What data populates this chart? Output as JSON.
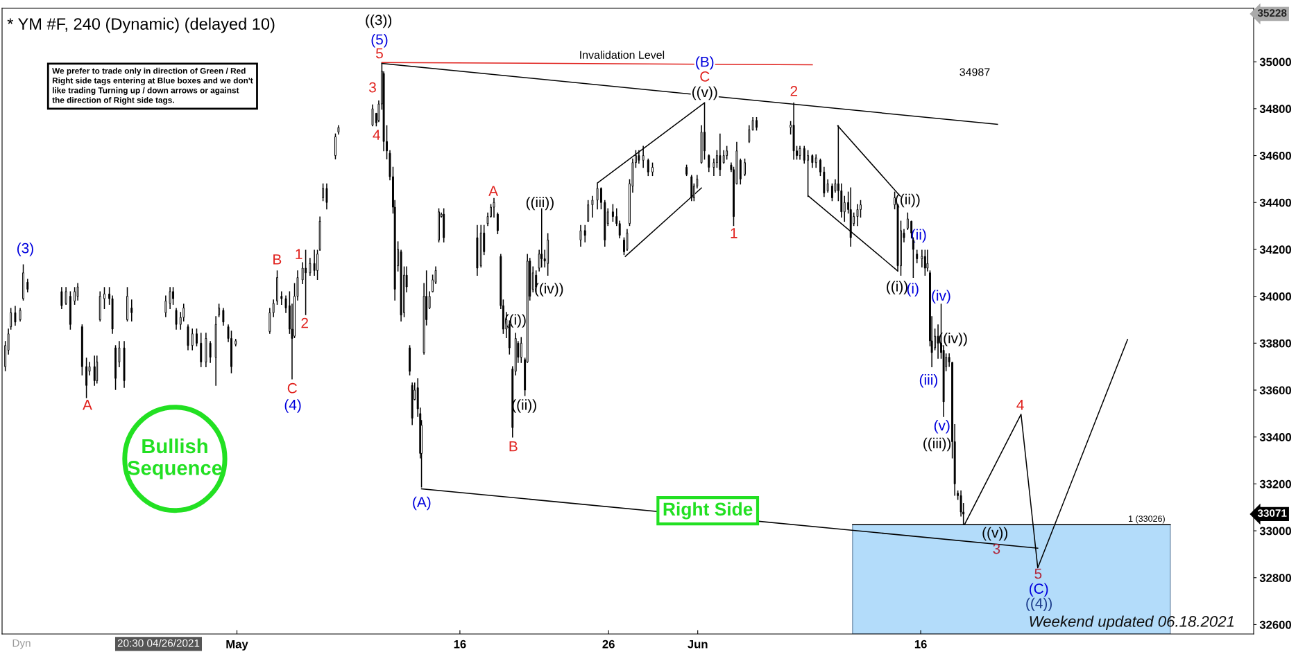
{
  "chart_data": {
    "type": "candlestick",
    "title": "* YM #F, 240 (Dynamic) (delayed 10)",
    "x": [
      "2021-04-15T10:00",
      "2021-04-15T15:00",
      "2021-04-15T19:00",
      "2021-04-16T02:00",
      "2021-04-16T10:00",
      "2021-04-16T15:00",
      "2021-04-16T22:00",
      "2021-04-19T05:00",
      "2021-04-19T12:00",
      "2021-04-19T19:00",
      "2021-04-20T02:00",
      "2021-04-20T07:00",
      "2021-04-20T14:00",
      "2021-04-20T21:00",
      "2021-04-21T02:00",
      "2021-04-21T10:00",
      "2021-04-21T14:00",
      "2021-04-21T19:00",
      "2021-04-22T02:00",
      "2021-04-22T10:00",
      "2021-04-22T15:00",
      "2021-04-22T20:00",
      "2021-04-23T02:00",
      "2021-04-23T10:00",
      "2021-04-23T15:00",
      "2021-04-23T22:00",
      "2021-04-26T05:00",
      "2021-04-26T12:00",
      "2021-04-26T17:00",
      "2021-04-26T22:00",
      "2021-04-27T05:00",
      "2021-04-27T10:00",
      "2021-04-27T17:00",
      "2021-04-28T00:00",
      "2021-04-28T07:00",
      "2021-04-28T14:00",
      "2021-04-28T22:00",
      "2021-04-29T05:00",
      "2021-04-29T14:00",
      "2021-04-29T19:00",
      "2021-04-30T02:00",
      "2021-04-30T10:00",
      "2021-04-30T15:00",
      "2021-04-30T22:00",
      "2021-05-03T05:00",
      "2021-05-03T11:00",
      "2021-05-03T17:00",
      "2021-05-04T00:00",
      "2021-05-04T07:00",
      "2021-05-04T13:00",
      "2021-05-04T17:00",
      "2021-05-04T21:00",
      "2021-05-05T02:00",
      "2021-05-05T10:00",
      "2021-05-05T15:00",
      "2021-05-05T22:00",
      "2021-05-06T05:00",
      "2021-05-06T10:00",
      "2021-05-06T14:00",
      "2021-05-06T19:00",
      "2021-05-07T01:00",
      "2021-05-07T15:00",
      "2021-05-07T20:00",
      "2021-05-10T03:00",
      "2021-05-10T09:00",
      "2021-05-10T13:00",
      "2021-05-10T18:00",
      "2021-05-10T21:00",
      "2021-05-11T02:00",
      "2021-05-11T07:00",
      "2021-05-11T12:00",
      "2021-05-11T15:00",
      "2021-05-11T20:00",
      "2021-05-12T01:00",
      "2021-05-12T06:00",
      "2021-05-12T10:00",
      "2021-05-12T15:00",
      "2021-05-12T19:00",
      "2021-05-12T23:00",
      "2021-05-13T04:00",
      "2021-05-13T08:00",
      "2021-05-13T10:00",
      "2021-05-13T14:00",
      "2021-05-13T18:00",
      "2021-05-13T23:00",
      "2021-05-14T04:00",
      "2021-05-14T09:00",
      "2021-05-14T14:00",
      "2021-05-14T18:00",
      "2021-05-14T22:00",
      "2021-05-17T04:00",
      "2021-05-17T10:00",
      "2021-05-17T15:00",
      "2021-05-17T21:00",
      "2021-05-18T02:00",
      "2021-05-18T07:00",
      "2021-05-18T13:00",
      "2021-05-18T18:00",
      "2021-05-18T22:00",
      "2021-05-19T03:00",
      "2021-05-19T08:00",
      "2021-05-19T13:00",
      "2021-05-19T18:00",
      "2021-05-19T22:00",
      "2021-05-20T03:00",
      "2021-05-20T09:00",
      "2021-05-20T13:00",
      "2021-05-20T17:00",
      "2021-05-20T22:00",
      "2021-05-21T03:00",
      "2021-05-21T08:00",
      "2021-05-21T12:00",
      "2021-05-21T17:00",
      "2021-05-21T22:00",
      "2021-05-24T03:00",
      "2021-05-24T10:00",
      "2021-05-24T15:00",
      "2021-05-24T22:00",
      "2021-05-25T06:00",
      "2021-05-25T12:00",
      "2021-05-25T18:00",
      "2021-05-25T23:00",
      "2021-05-26T07:00",
      "2021-05-26T13:00",
      "2021-05-26T18:00",
      "2021-05-27T01:00",
      "2021-05-27T06:00",
      "2021-05-27T10:00",
      "2021-05-27T15:00",
      "2021-05-27T20:00",
      "2021-05-28T01:00",
      "2021-05-28T08:00",
      "2021-05-28T16:00",
      "2021-05-28T23:00",
      "2021-05-31T06:00",
      "2021-05-31T14:00",
      "2021-05-31T18:00",
      "2021-05-31T23:00",
      "2021-06-01T06:00",
      "2021-06-01T11:00",
      "2021-06-01T18:00",
      "2021-06-02T02:00",
      "2021-06-02T07:00",
      "2021-06-02T12:00",
      "2021-06-02T18:00",
      "2021-06-02T23:00",
      "2021-06-03T06:00",
      "2021-06-03T10:00",
      "2021-06-03T15:00",
      "2021-06-03T21:00",
      "2021-06-04T04:00",
      "2021-06-04T11:00",
      "2021-06-04T17:00",
      "2021-06-04T23:00",
      "2021-06-07T06:00",
      "2021-06-07T11:00",
      "2021-06-07T16:00",
      "2021-06-07T21:00",
      "2021-06-08T04:00",
      "2021-06-08T10:00",
      "2021-06-08T17:00",
      "2021-06-08T23:00",
      "2021-06-09T06:00",
      "2021-06-09T12:00",
      "2021-06-09T18:00",
      "2021-06-10T01:00",
      "2021-06-10T06:00",
      "2021-06-10T11:00",
      "2021-06-10T16:00",
      "2021-06-10T21:00",
      "2021-06-11T03:00",
      "2021-06-11T07:00",
      "2021-06-11T12:00",
      "2021-06-11T18:00",
      "2021-06-11T23:00",
      "2021-06-14T06:00",
      "2021-06-14T11:00",
      "2021-06-14T16:00",
      "2021-06-14T21:00",
      "2021-06-15T03:00",
      "2021-06-15T09:00",
      "2021-06-15T12:00",
      "2021-06-15T18:00",
      "2021-06-16T02:00",
      "2021-06-16T07:00",
      "2021-06-16T11:00",
      "2021-06-16T15:00",
      "2021-06-16T18:00",
      "2021-06-16T23:00",
      "2021-06-17T04:00",
      "2021-06-17T09:00",
      "2021-06-17T13:00",
      "2021-06-17T17:00",
      "2021-06-17T22:00",
      "2021-06-18T03:00",
      "2021-06-18T07:00",
      "2021-06-18T12:00",
      "2021-06-18T17:00",
      "2021-06-18T21:00"
    ],
    "ohlc": [
      [
        33700,
        33807,
        33683,
        33790
      ],
      [
        33770,
        33860,
        33754,
        33840
      ],
      [
        33870,
        33948,
        33860,
        33930
      ],
      [
        33930,
        33957,
        33877,
        33890
      ],
      [
        33900,
        33948,
        33895,
        33940
      ],
      [
        33990,
        34134,
        33984,
        34100
      ],
      [
        34060,
        34072,
        34019,
        34030
      ],
      [
        34020,
        34037,
        33948,
        33960
      ],
      [
        33970,
        34037,
        33966,
        34020
      ],
      [
        34000,
        34019,
        33860,
        33880
      ],
      [
        33980,
        34037,
        33966,
        34020
      ],
      [
        34000,
        34054,
        33984,
        34040
      ],
      [
        33870,
        33878,
        33665,
        33700
      ],
      [
        33700,
        33736,
        33568,
        33620
      ],
      [
        33680,
        33718,
        33665,
        33700
      ],
      [
        33700,
        33745,
        33621,
        33640
      ],
      [
        33640,
        33745,
        33630,
        33720
      ],
      [
        33900,
        34019,
        33895,
        34000
      ],
      [
        33990,
        34037,
        33948,
        34010
      ],
      [
        34010,
        34037,
        33966,
        33990
      ],
      [
        33990,
        34001,
        33842,
        33860
      ],
      [
        33780,
        33789,
        33603,
        33650
      ],
      [
        33720,
        33807,
        33700,
        33780
      ],
      [
        33780,
        33807,
        33612,
        33640
      ],
      [
        33900,
        34037,
        33895,
        34000
      ],
      [
        33950,
        33984,
        33895,
        33930
      ],
      [
        33930,
        34001,
        33913,
        33980
      ],
      [
        33970,
        34037,
        33948,
        34020
      ],
      [
        34020,
        34037,
        33966,
        33990
      ],
      [
        33940,
        33948,
        33860,
        33880
      ],
      [
        33880,
        33931,
        33860,
        33910
      ],
      [
        33910,
        33966,
        33895,
        33950
      ],
      [
        33870,
        33878,
        33772,
        33790
      ],
      [
        33790,
        33860,
        33772,
        33840
      ],
      [
        33840,
        33860,
        33789,
        33800
      ],
      [
        33800,
        33842,
        33700,
        33720
      ],
      [
        33720,
        33842,
        33700,
        33820
      ],
      [
        33800,
        33807,
        33718,
        33740
      ],
      [
        33740,
        33913,
        33621,
        33880
      ],
      [
        33920,
        33966,
        33913,
        33950
      ],
      [
        33940,
        33948,
        33877,
        33890
      ],
      [
        33870,
        33878,
        33807,
        33820
      ],
      [
        33820,
        33851,
        33674,
        33700
      ],
      [
        33795,
        33816,
        33789,
        33810
      ],
      [
        33850,
        33948,
        33842,
        33930
      ],
      [
        33930,
        33984,
        33913,
        33970
      ],
      [
        33980,
        34108,
        33966,
        34080
      ],
      [
        34000,
        34019,
        33966,
        33990
      ],
      [
        33990,
        34001,
        33931,
        33950
      ],
      [
        33960,
        34019,
        33842,
        33860
      ],
      [
        33860,
        33966,
        33648,
        33820
      ],
      [
        33830,
        34054,
        33824,
        34000
      ],
      [
        34000,
        34108,
        33984,
        34080
      ],
      [
        34070,
        34143,
        34054,
        34120
      ],
      [
        34120,
        34196,
        33922,
        34100
      ],
      [
        34100,
        34161,
        34090,
        34140
      ],
      [
        34140,
        34196,
        34090,
        34110
      ],
      [
        34110,
        34196,
        34072,
        34180
      ],
      [
        34200,
        34338,
        34196,
        34320
      ],
      [
        34420,
        34479,
        34408,
        34460
      ],
      [
        34460,
        34479,
        34373,
        34400
      ],
      [
        34600,
        34692,
        34586,
        34680
      ],
      [
        34700,
        34727,
        34692,
        34720
      ],
      [
        34730,
        34816,
        34727,
        34800
      ],
      [
        34780,
        34780,
        34727,
        34740
      ],
      [
        34750,
        34833,
        34745,
        34820
      ],
      [
        34820,
        34993,
        34798,
        34960
      ],
      [
        34950,
        34957,
        34621,
        34660
      ],
      [
        34660,
        34727,
        34586,
        34620
      ],
      [
        34610,
        34621,
        34497,
        34510
      ],
      [
        34510,
        34550,
        34355,
        34380
      ],
      [
        34380,
        34408,
        33984,
        34030
      ],
      [
        34130,
        34232,
        34108,
        34200
      ],
      [
        34190,
        34196,
        33895,
        33920
      ],
      [
        33930,
        34125,
        33913,
        34090
      ],
      [
        34090,
        34125,
        34019,
        34040
      ],
      [
        33780,
        33789,
        33665,
        33680
      ],
      [
        33620,
        33630,
        33453,
        33480
      ],
      [
        33560,
        33630,
        33559,
        33600
      ],
      [
        33610,
        33648,
        33488,
        33520
      ],
      [
        33500,
        33523,
        33311,
        33330
      ],
      [
        33330,
        33470,
        33187,
        33450
      ],
      [
        33760,
        34054,
        33754,
        34000
      ],
      [
        34000,
        34108,
        33878,
        33900
      ],
      [
        33950,
        34019,
        33948,
        34000
      ],
      [
        34020,
        34090,
        34019,
        34070
      ],
      [
        34060,
        34125,
        34054,
        34110
      ],
      [
        34240,
        34373,
        34232,
        34360
      ],
      [
        34340,
        34355,
        34338,
        34350
      ],
      [
        34350,
        34373,
        34232,
        34250
      ],
      [
        34250,
        34302,
        34090,
        34120
      ],
      [
        34130,
        34302,
        34125,
        34270
      ],
      [
        34270,
        34302,
        34178,
        34190
      ],
      [
        34310,
        34355,
        34302,
        34340
      ],
      [
        34340,
        34391,
        34338,
        34380
      ],
      [
        34380,
        34417,
        34338,
        34400
      ],
      [
        34350,
        34355,
        34267,
        34280
      ],
      [
        34170,
        34178,
        33948,
        33960
      ],
      [
        33960,
        33984,
        33842,
        33860
      ],
      [
        33860,
        33931,
        33824,
        33900
      ],
      [
        33880,
        33895,
        33754,
        33780
      ],
      [
        33690,
        33700,
        33400,
        33440
      ],
      [
        33680,
        33842,
        33665,
        33820
      ],
      [
        33800,
        33807,
        33718,
        33740
      ],
      [
        33740,
        33824,
        33718,
        33800
      ],
      [
        33730,
        33736,
        33577,
        33600
      ],
      [
        33720,
        34178,
        33718,
        34150
      ],
      [
        34150,
        34161,
        33984,
        34000
      ],
      [
        34030,
        34125,
        34019,
        34100
      ],
      [
        34090,
        34108,
        34019,
        34040
      ],
      [
        34120,
        34196,
        34108,
        34180
      ],
      [
        34180,
        34373,
        34125,
        34160
      ],
      [
        34160,
        34196,
        34125,
        34150
      ],
      [
        34140,
        34267,
        34090,
        34240
      ],
      [
        34240,
        34302,
        34214,
        34280
      ],
      [
        34280,
        34302,
        34232,
        34260
      ],
      [
        34320,
        34408,
        34320,
        34390
      ],
      [
        34390,
        34426,
        34338,
        34410
      ],
      [
        34410,
        34479,
        34373,
        34460
      ],
      [
        34460,
        34462,
        34373,
        34400
      ],
      [
        34400,
        34408,
        34214,
        34240
      ],
      [
        34310,
        34373,
        34302,
        34360
      ],
      [
        34360,
        34391,
        34320,
        34340
      ],
      [
        34340,
        34373,
        34302,
        34310
      ],
      [
        34310,
        34320,
        34249,
        34260
      ],
      [
        34240,
        34249,
        34178,
        34190
      ],
      [
        34200,
        34285,
        34196,
        34270
      ],
      [
        34310,
        34497,
        34302,
        34480
      ],
      [
        34470,
        34585,
        34444,
        34570
      ],
      [
        34570,
        34621,
        34550,
        34600
      ],
      [
        34600,
        34621,
        34568,
        34580
      ],
      [
        34580,
        34639,
        34550,
        34600
      ],
      [
        34580,
        34585,
        34515,
        34530
      ],
      [
        34530,
        34568,
        34515,
        34550
      ],
      [
        34550,
        34559,
        34515,
        34520
      ],
      [
        34510,
        34515,
        34408,
        34420
      ],
      [
        34420,
        34479,
        34408,
        34470
      ],
      [
        34470,
        34515,
        34462,
        34500
      ],
      [
        34570,
        34727,
        34568,
        34700
      ],
      [
        34700,
        34824,
        34585,
        34620
      ],
      [
        34600,
        34603,
        34532,
        34550
      ],
      [
        34550,
        34585,
        34515,
        34570
      ],
      [
        34570,
        34621,
        34550,
        34600
      ],
      [
        34600,
        34692,
        34515,
        34540
      ],
      [
        34570,
        34621,
        34568,
        34600
      ],
      [
        34600,
        34639,
        34585,
        34620
      ],
      [
        34560,
        34568,
        34532,
        34540
      ],
      [
        34540,
        34550,
        34302,
        34340
      ],
      [
        34480,
        34656,
        34479,
        34620
      ],
      [
        34580,
        34585,
        34479,
        34500
      ],
      [
        34520,
        34585,
        34515,
        34570
      ],
      [
        34660,
        34727,
        34656,
        34710
      ],
      [
        34710,
        34762,
        34709,
        34750
      ],
      [
        34750,
        34762,
        34709,
        34720
      ],
      [
        34720,
        34745,
        34692,
        34730
      ],
      [
        34730,
        34824,
        34585,
        34620
      ],
      [
        34620,
        34639,
        34585,
        34600
      ],
      [
        34600,
        34639,
        34585,
        34630
      ],
      [
        34630,
        34639,
        34568,
        34580
      ],
      [
        34580,
        34621,
        34426,
        34600
      ],
      [
        34600,
        34603,
        34550,
        34570
      ],
      [
        34570,
        34603,
        34550,
        34590
      ],
      [
        34580,
        34585,
        34515,
        34530
      ],
      [
        34530,
        34550,
        34426,
        34440
      ],
      [
        34450,
        34497,
        34444,
        34480
      ],
      [
        34470,
        34479,
        34408,
        34420
      ],
      [
        34450,
        34497,
        34444,
        34480
      ],
      [
        34480,
        34727,
        34408,
        34450
      ],
      [
        34450,
        34479,
        34338,
        34360
      ],
      [
        34360,
        34426,
        34320,
        34400
      ],
      [
        34400,
        34444,
        34355,
        34370
      ],
      [
        34370,
        34462,
        34214,
        34250
      ],
      [
        34310,
        34355,
        34302,
        34340
      ],
      [
        34340,
        34391,
        34302,
        34370
      ],
      [
        34370,
        34408,
        34338,
        34390
      ],
      [
        34390,
        34444,
        34373,
        34420
      ],
      [
        34390,
        34391,
        34108,
        34130
      ],
      [
        34130,
        34320,
        34090,
        34280
      ],
      [
        34270,
        34285,
        34232,
        34250
      ],
      [
        34290,
        34355,
        34285,
        34330
      ],
      [
        34320,
        34320,
        34249,
        34270
      ],
      [
        34240,
        34249,
        34081,
        34200
      ],
      [
        34180,
        34196,
        34143,
        34160
      ],
      [
        34160,
        34196,
        34125,
        34170
      ],
      [
        34170,
        34196,
        34090,
        34120
      ],
      [
        34120,
        34196,
        34108,
        34140
      ],
      [
        34100,
        34108,
        33789,
        33810
      ],
      [
        33810,
        33913,
        33700,
        33760
      ],
      [
        33780,
        33860,
        33772,
        33830
      ],
      [
        33830,
        33878,
        33736,
        33800
      ],
      [
        33800,
        33966,
        33736,
        33760
      ],
      [
        33770,
        33789,
        33488,
        33550
      ],
      [
        33700,
        33754,
        33683,
        33740
      ],
      [
        33740,
        33754,
        33701,
        33720
      ],
      [
        33718,
        33718,
        33311,
        33380
      ],
      [
        33380,
        33453,
        33152,
        33200
      ],
      [
        33160,
        33170,
        33134,
        33150
      ],
      [
        33150,
        33170,
        33063,
        33080
      ],
      [
        33080,
        33116,
        33028,
        33071
      ]
    ],
    "series": [
      {
        "type": "line",
        "color": "#000000",
        "x": [
          "2021-05-10T18:00",
          "2021-06-21T04:00"
        ],
        "values": [
          34993,
          34733
        ]
      },
      {
        "type": "line",
        "color": "#000000",
        "x": [
          "2021-05-13T10:00",
          "2021-06-23T21:00"
        ],
        "values": [
          33179,
          32926
        ]
      },
      {
        "type": "line",
        "color": "#000000",
        "x": [
          "2021-05-25T06:00",
          "2021-06-01T11:00"
        ],
        "values": [
          34483,
          34825
        ]
      },
      {
        "type": "line",
        "color": "#000000",
        "x": [
          "2021-05-27T03:00",
          "2021-06-01T06:00"
        ],
        "values": [
          34170,
          34462
        ]
      },
      {
        "type": "line",
        "color": "#000000",
        "x": [
          "2021-06-10T10:00",
          "2021-06-14T15:00"
        ],
        "values": [
          34727,
          34427
        ]
      },
      {
        "type": "line",
        "color": "#000000",
        "x": [
          "2021-06-08T11:00",
          "2021-06-14T11:00"
        ],
        "values": [
          34427,
          34108
        ]
      },
      {
        "type": "line",
        "color": "#000000",
        "x": [
          "2021-06-18T23:00",
          "2021-06-22T18:00",
          "2021-06-23T21:00",
          "2021-06-29T22:00"
        ],
        "values": [
          33028,
          33497,
          32842,
          33816
        ]
      },
      {
        "type": "line",
        "color": "#e0201c",
        "x": [
          "2021-05-10T18:00",
          "2021-06-08T17:00"
        ],
        "values": [
          34997,
          34987
        ]
      }
    ],
    "bands": [
      {
        "axis": "x",
        "from": "2021-06-11T10:00",
        "to": "2021-07-02T19:00",
        "color": "#b3dcfa"
      }
    ],
    "ref_lines": [
      {
        "axis": "y",
        "value": 33026,
        "label": "1 (33026)",
        "color": "#000000"
      }
    ],
    "xlim": [
      "2021-04-15T04:48",
      "2021-07-08T09:36"
    ],
    "ylim": [
      32560,
      35228
    ],
    "xticks": [
      {
        "value": "2021-05",
        "label": "May"
      },
      {
        "value": "2021-05-16",
        "label": "16"
      },
      {
        "value": "2021-05-26",
        "label": "26"
      },
      {
        "value": "2021-06",
        "label": "Jun"
      },
      {
        "value": "2021-06-16",
        "label": "16"
      }
    ],
    "yticks": [
      32600,
      32800,
      33000,
      33200,
      33400,
      33600,
      33800,
      34000,
      34200,
      34400,
      34600,
      34800,
      35000
    ],
    "grid": false,
    "annotations": [
      "We prefer to trade only in direction of Green / Red\nRight side tags entering at Blue boxes and we don't\nlike trading Turning up / down arrows or against\nthe direction of Right side tags.",
      "Bullish\nSequence",
      "Right Side",
      "Weekend updated 06.18.2021",
      "20:30 04/26/2021",
      "Dyn",
      "35228",
      "33071",
      "Invalidation Level",
      "34987",
      "(3)",
      "A",
      "B",
      "1",
      "2",
      "C",
      "(4)",
      "((3))",
      "(5)",
      "5",
      {
        "text": "3",
        "x": "2021-05-10T03:00",
        "y": 34816
      },
      "4",
      "A",
      "((iii))",
      "((iv))",
      "((i))",
      "((ii))",
      "B",
      "(A)",
      "(B)",
      "C",
      "((v))",
      "2",
      "1",
      {
        "text": "((ii))",
        "x": "2021-06-15T03:00",
        "y": 34355
      },
      "(ii)",
      "((i))",
      "(i)",
      "(iv)",
      "((iv))",
      "(iii)",
      "(v)",
      "((iii))",
      "((v))",
      "3",
      "4",
      "5",
      "(C)",
      "((4))"
    ]
  }
}
